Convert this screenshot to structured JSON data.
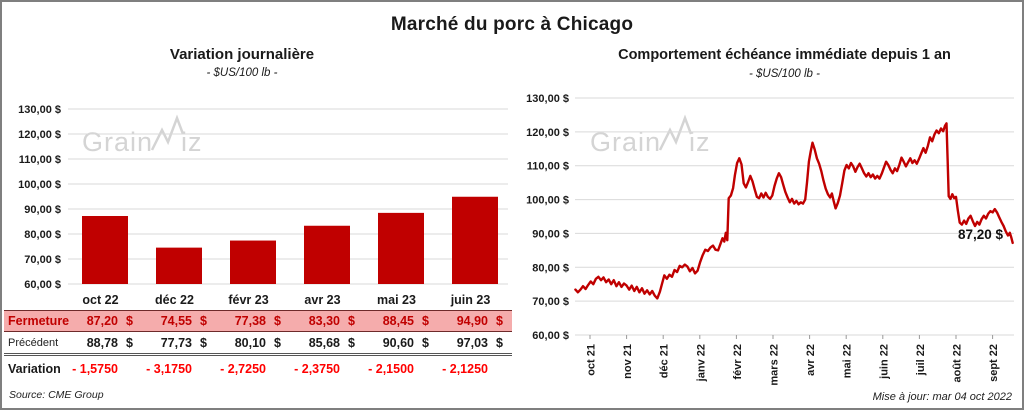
{
  "page": {
    "title": "Marché du porc à Chicago",
    "source_note": "Source: CME Group",
    "update_note": "Mise à jour: mar 04 oct 2022"
  },
  "colors": {
    "series_red": "#C00000",
    "variation_red": "#FF0000",
    "close_row_pink": "#F5ACAC",
    "gridline": "#D9D9D9",
    "watermark_gray": "#D4D4D4",
    "text": "#1a1a1a"
  },
  "watermark": {
    "text_left": "Grain",
    "text_right": "iz",
    "zigzag_icon": "line-spark-w"
  },
  "chart_data": [
    {
      "type": "bar",
      "title": "Variation journalière",
      "subtitle": "- $US/100 lb -",
      "categories": [
        "oct 22",
        "déc 22",
        "févr 23",
        "avr 23",
        "mai 23",
        "juin 23"
      ],
      "values": [
        87.2,
        74.55,
        77.38,
        83.3,
        88.45,
        94.9
      ],
      "ylim": [
        60,
        130
      ],
      "yticks": [
        130,
        120,
        110,
        100,
        90,
        80,
        70,
        60
      ],
      "ytick_labels": [
        "130,00 $",
        "120,00 $",
        "110,00 $",
        "100,00 $",
        "90,00 $",
        "80,00 $",
        "70,00 $",
        "60,00 $"
      ],
      "bar_color": "#C00000",
      "grid": true,
      "legend": "none"
    },
    {
      "type": "line",
      "title": "Comportement échéance immédiate depuis 1 an",
      "subtitle": "- $US/100 lb -",
      "x_tick_labels": [
        "oct 21",
        "nov 21",
        "déc 21",
        "janv 22",
        "févr 22",
        "mars 22",
        "avr 22",
        "mai 22",
        "juin 22",
        "juil 22",
        "août 22",
        "sept 22"
      ],
      "ylim": [
        60,
        130
      ],
      "yticks": [
        130,
        120,
        110,
        100,
        90,
        80,
        70,
        60
      ],
      "ytick_labels": [
        "130,00 $",
        "120,00 $",
        "110,00 $",
        "100,00 $",
        "90,00 $",
        "80,00 $",
        "70,00 $",
        "60,00 $"
      ],
      "line_color": "#C00000",
      "grid": true,
      "legend": "none",
      "annotation": {
        "text": "87,20 $",
        "value": 87.2
      },
      "series": [
        {
          "name": "échéance immédiate",
          "points_month_value": [
            [
              -0.4,
              73.4
            ],
            [
              -0.33,
              72.6
            ],
            [
              -0.26,
              73.4
            ],
            [
              -0.19,
              74.4
            ],
            [
              -0.12,
              73.6
            ],
            [
              -0.05,
              74.8
            ],
            [
              0.02,
              75.8
            ],
            [
              0.09,
              75.0
            ],
            [
              0.16,
              76.6
            ],
            [
              0.23,
              77.2
            ],
            [
              0.3,
              76.2
            ],
            [
              0.37,
              77.0
            ],
            [
              0.44,
              75.6
            ],
            [
              0.51,
              76.4
            ],
            [
              0.58,
              75.0
            ],
            [
              0.65,
              76.2
            ],
            [
              0.72,
              74.4
            ],
            [
              0.79,
              75.6
            ],
            [
              0.86,
              74.2
            ],
            [
              0.93,
              75.2
            ],
            [
              1.0,
              74.6
            ],
            [
              1.07,
              73.4
            ],
            [
              1.14,
              74.6
            ],
            [
              1.21,
              73.0
            ],
            [
              1.28,
              74.2
            ],
            [
              1.35,
              72.6
            ],
            [
              1.42,
              73.8
            ],
            [
              1.49,
              72.2
            ],
            [
              1.56,
              73.2
            ],
            [
              1.63,
              72.0
            ],
            [
              1.7,
              73.0
            ],
            [
              1.77,
              71.6
            ],
            [
              1.84,
              70.8
            ],
            [
              1.91,
              72.8
            ],
            [
              1.97,
              75.2
            ],
            [
              2.03,
              77.6
            ],
            [
              2.1,
              76.6
            ],
            [
              2.17,
              77.8
            ],
            [
              2.24,
              77.2
            ],
            [
              2.31,
              79.2
            ],
            [
              2.38,
              78.6
            ],
            [
              2.45,
              80.4
            ],
            [
              2.52,
              80.0
            ],
            [
              2.59,
              80.8
            ],
            [
              2.66,
              80.2
            ],
            [
              2.73,
              78.8
            ],
            [
              2.8,
              79.8
            ],
            [
              2.87,
              78.2
            ],
            [
              2.94,
              79.0
            ],
            [
              3.01,
              81.6
            ],
            [
              3.08,
              83.6
            ],
            [
              3.15,
              85.2
            ],
            [
              3.22,
              84.8
            ],
            [
              3.29,
              85.8
            ],
            [
              3.36,
              86.4
            ],
            [
              3.43,
              85.2
            ],
            [
              3.5,
              85.0
            ],
            [
              3.56,
              86.8
            ],
            [
              3.62,
              88.6
            ],
            [
              3.67,
              87.6
            ],
            [
              3.71,
              90.2
            ],
            [
              3.75,
              88.0
            ],
            [
              3.79,
              100.4
            ],
            [
              3.85,
              101.2
            ],
            [
              3.91,
              103.4
            ],
            [
              3.96,
              107.2
            ],
            [
              4.02,
              110.8
            ],
            [
              4.08,
              112.2
            ],
            [
              4.14,
              110.4
            ],
            [
              4.2,
              104.8
            ],
            [
              4.26,
              103.6
            ],
            [
              4.32,
              105.2
            ],
            [
              4.38,
              107.0
            ],
            [
              4.44,
              105.4
            ],
            [
              4.5,
              103.0
            ],
            [
              4.56,
              100.8
            ],
            [
              4.62,
              100.4
            ],
            [
              4.68,
              101.8
            ],
            [
              4.74,
              100.6
            ],
            [
              4.8,
              102.0
            ],
            [
              4.86,
              100.8
            ],
            [
              4.92,
              100.2
            ],
            [
              4.98,
              101.2
            ],
            [
              5.04,
              104.0
            ],
            [
              5.1,
              106.2
            ],
            [
              5.16,
              107.8
            ],
            [
              5.22,
              106.6
            ],
            [
              5.28,
              104.4
            ],
            [
              5.34,
              102.2
            ],
            [
              5.4,
              100.6
            ],
            [
              5.46,
              99.2
            ],
            [
              5.52,
              100.2
            ],
            [
              5.58,
              98.8
            ],
            [
              5.64,
              99.6
            ],
            [
              5.7,
              98.6
            ],
            [
              5.76,
              99.2
            ],
            [
              5.82,
              98.8
            ],
            [
              5.88,
              100.0
            ],
            [
              5.93,
              105.0
            ],
            [
              5.98,
              111.2
            ],
            [
              6.03,
              114.2
            ],
            [
              6.08,
              116.8
            ],
            [
              6.14,
              114.8
            ],
            [
              6.2,
              112.2
            ],
            [
              6.26,
              110.6
            ],
            [
              6.32,
              108.4
            ],
            [
              6.38,
              105.6
            ],
            [
              6.44,
              103.2
            ],
            [
              6.5,
              101.6
            ],
            [
              6.56,
              100.6
            ],
            [
              6.61,
              101.8
            ],
            [
              6.66,
              99.4
            ],
            [
              6.71,
              97.4
            ],
            [
              6.77,
              99.0
            ],
            [
              6.83,
              101.2
            ],
            [
              6.89,
              104.8
            ],
            [
              6.95,
              108.6
            ],
            [
              7.01,
              110.2
            ],
            [
              7.07,
              109.2
            ],
            [
              7.13,
              110.8
            ],
            [
              7.19,
              109.8
            ],
            [
              7.25,
              108.2
            ],
            [
              7.31,
              109.6
            ],
            [
              7.37,
              110.6
            ],
            [
              7.43,
              109.2
            ],
            [
              7.49,
              107.8
            ],
            [
              7.55,
              106.8
            ],
            [
              7.61,
              107.8
            ],
            [
              7.67,
              106.6
            ],
            [
              7.73,
              107.4
            ],
            [
              7.79,
              106.2
            ],
            [
              7.85,
              107.0
            ],
            [
              7.91,
              106.2
            ],
            [
              7.97,
              107.6
            ],
            [
              8.03,
              109.4
            ],
            [
              8.09,
              111.2
            ],
            [
              8.15,
              110.2
            ],
            [
              8.21,
              108.8
            ],
            [
              8.27,
              107.8
            ],
            [
              8.33,
              109.2
            ],
            [
              8.39,
              108.4
            ],
            [
              8.45,
              110.2
            ],
            [
              8.51,
              112.4
            ],
            [
              8.57,
              111.2
            ],
            [
              8.63,
              109.8
            ],
            [
              8.69,
              111.0
            ],
            [
              8.75,
              112.2
            ],
            [
              8.81,
              110.8
            ],
            [
              8.87,
              111.6
            ],
            [
              8.93,
              110.6
            ],
            [
              8.99,
              112.0
            ],
            [
              9.05,
              113.6
            ],
            [
              9.11,
              115.2
            ],
            [
              9.17,
              113.8
            ],
            [
              9.23,
              115.8
            ],
            [
              9.29,
              118.4
            ],
            [
              9.35,
              117.2
            ],
            [
              9.41,
              119.2
            ],
            [
              9.47,
              120.4
            ],
            [
              9.53,
              119.6
            ],
            [
              9.59,
              121.0
            ],
            [
              9.65,
              120.2
            ],
            [
              9.7,
              121.8
            ],
            [
              9.74,
              122.5
            ],
            [
              9.77,
              112.0
            ],
            [
              9.8,
              101.0
            ],
            [
              9.85,
              100.2
            ],
            [
              9.9,
              101.6
            ],
            [
              9.95,
              100.4
            ],
            [
              10.0,
              100.8
            ],
            [
              10.05,
              96.8
            ],
            [
              10.1,
              93.2
            ],
            [
              10.16,
              92.6
            ],
            [
              10.22,
              93.8
            ],
            [
              10.28,
              92.8
            ],
            [
              10.34,
              94.4
            ],
            [
              10.4,
              95.2
            ],
            [
              10.46,
              93.6
            ],
            [
              10.52,
              92.2
            ],
            [
              10.58,
              93.4
            ],
            [
              10.64,
              92.6
            ],
            [
              10.7,
              94.2
            ],
            [
              10.76,
              95.2
            ],
            [
              10.82,
              94.4
            ],
            [
              10.88,
              95.8
            ],
            [
              10.94,
              96.6
            ],
            [
              11.0,
              96.2
            ],
            [
              11.06,
              97.2
            ],
            [
              11.12,
              96.2
            ],
            [
              11.18,
              94.8
            ],
            [
              11.24,
              93.4
            ],
            [
              11.3,
              92.2
            ],
            [
              11.36,
              90.6
            ],
            [
              11.42,
              89.4
            ],
            [
              11.47,
              90.2
            ],
            [
              11.51,
              88.8
            ],
            [
              11.55,
              87.2
            ]
          ]
        }
      ]
    }
  ],
  "table": {
    "rows": [
      {
        "key": "fermeture",
        "label": "Fermeture",
        "currency": "$",
        "values": [
          "87,20",
          "74,55",
          "77,38",
          "83,30",
          "88,45",
          "94,90"
        ]
      },
      {
        "key": "precedent",
        "label": "Précédent",
        "currency": "$",
        "values": [
          "88,78",
          "77,73",
          "80,10",
          "85,68",
          "90,60",
          "97,03"
        ]
      },
      {
        "key": "variation",
        "label": "Variation",
        "currency": "",
        "values": [
          "- 1,5750",
          "- 3,1750",
          "- 2,7250",
          "- 2,3750",
          "- 2,1500",
          "- 2,1250"
        ]
      }
    ]
  }
}
